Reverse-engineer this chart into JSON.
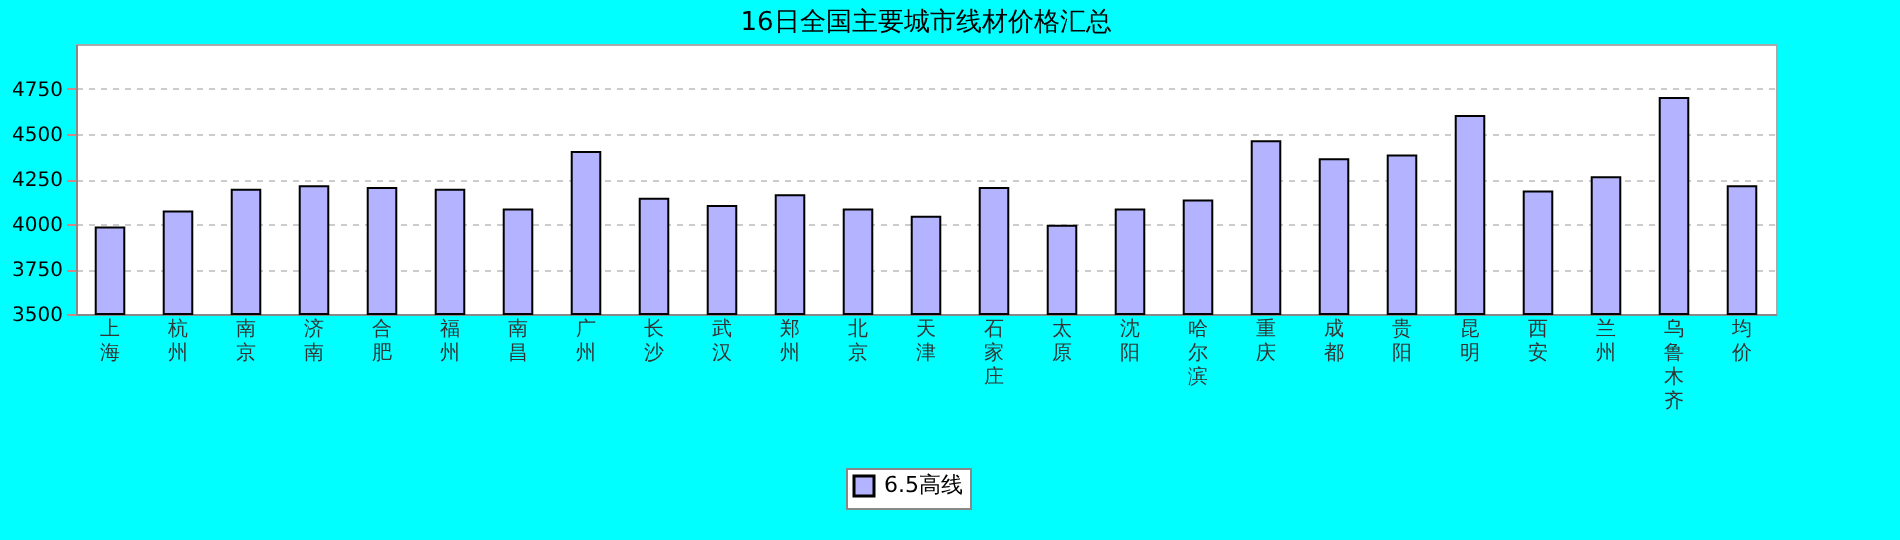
{
  "chart_data": {
    "type": "bar",
    "title": "16日全国主要城市线材价格汇总",
    "categories": [
      "上海",
      "杭州",
      "南京",
      "济南",
      "合肥",
      "福州",
      "南昌",
      "广州",
      "长沙",
      "武汉",
      "郑州",
      "北京",
      "天津",
      "石家庄",
      "太原",
      "沈阳",
      "哈尔滨",
      "重庆",
      "成都",
      "贵阳",
      "昆明",
      "西安",
      "兰州",
      "乌鲁木齐",
      "均价"
    ],
    "series": [
      {
        "name": "6.5高线",
        "color": "#b3b3ff",
        "values": [
          3980,
          4070,
          4190,
          4210,
          4200,
          4190,
          4080,
          4400,
          4140,
          4100,
          4160,
          4080,
          4040,
          4200,
          3990,
          4080,
          4130,
          4460,
          4360,
          4380,
          4600,
          4180,
          4260,
          4700,
          4210
        ]
      }
    ],
    "ylim": [
      3500,
      5000
    ],
    "yticks": [
      3500,
      3750,
      4000,
      4250,
      4500,
      4750
    ],
    "grid": "y",
    "legend": "bottom"
  }
}
